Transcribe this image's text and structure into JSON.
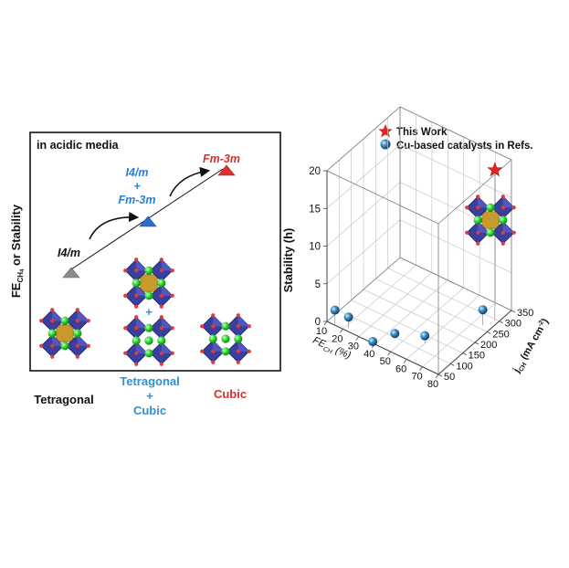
{
  "left_panel": {
    "title": "in acidic media",
    "ylabel_main": "FE",
    "ylabel_sub": "CH",
    "ylabel_sub2": "4",
    "ylabel_rest": " or Stability",
    "phases": [
      {
        "name": "Tetragonal",
        "label": "I4/m",
        "color": "#888888"
      },
      {
        "name": "Tetragonal + Cubic",
        "label_lines": [
          "I4/m",
          "+",
          "Fm-3m"
        ],
        "color": "#2a7fd4"
      },
      {
        "name": "Cubic",
        "label": "Fm-3m",
        "color": "#e02b2b"
      }
    ],
    "x_labels": [
      {
        "lines": [
          "Tetragonal"
        ],
        "color": "#111111"
      },
      {
        "lines": [
          "Tetragonal",
          "+",
          "Cubic"
        ],
        "color": "#2a92d8"
      },
      {
        "lines": [
          "Cubic"
        ],
        "color": "#e02b2b"
      }
    ]
  },
  "chart_data": {
    "type": "scatter",
    "legend": [
      {
        "label": "This Work",
        "marker": "star",
        "color": "#e32424"
      },
      {
        "label": "Cu-based catalysts in Refs.",
        "marker": "sphere",
        "color": "#3d8fc4"
      }
    ],
    "zlabel": "Stability (h)",
    "xlabel_main": "FE",
    "xlabel_sub": "CH",
    "xlabel_unit": " (%)",
    "ylabel_main": "j",
    "ylabel_sub": "CH",
    "ylabel_unit": " (mA cm",
    "x_ticks": [
      "10",
      "20",
      "30",
      "40",
      "50",
      "60",
      "70",
      "80"
    ],
    "y_ticks": [
      "50",
      "100",
      "150",
      "200",
      "250",
      "300",
      "350"
    ],
    "z_ticks": [
      "0",
      "5",
      "10",
      "15",
      "20"
    ],
    "xlim": [
      10,
      80
    ],
    "ylim": [
      50,
      350
    ],
    "zlim": [
      0,
      20
    ],
    "refs": [
      {
        "fe": 15,
        "j": 50,
        "stability": 2
      },
      {
        "fe": 22,
        "j": 60,
        "stability": 1.5
      },
      {
        "fe": 38,
        "j": 55,
        "stability": 0
      },
      {
        "fe": 45,
        "j": 100,
        "stability": 0.5
      },
      {
        "fe": 60,
        "j": 125,
        "stability": 1
      },
      {
        "fe": 75,
        "j": 265,
        "stability": 2
      }
    ],
    "this_work": {
      "fe": 78,
      "j": 295,
      "stability": 20
    }
  }
}
